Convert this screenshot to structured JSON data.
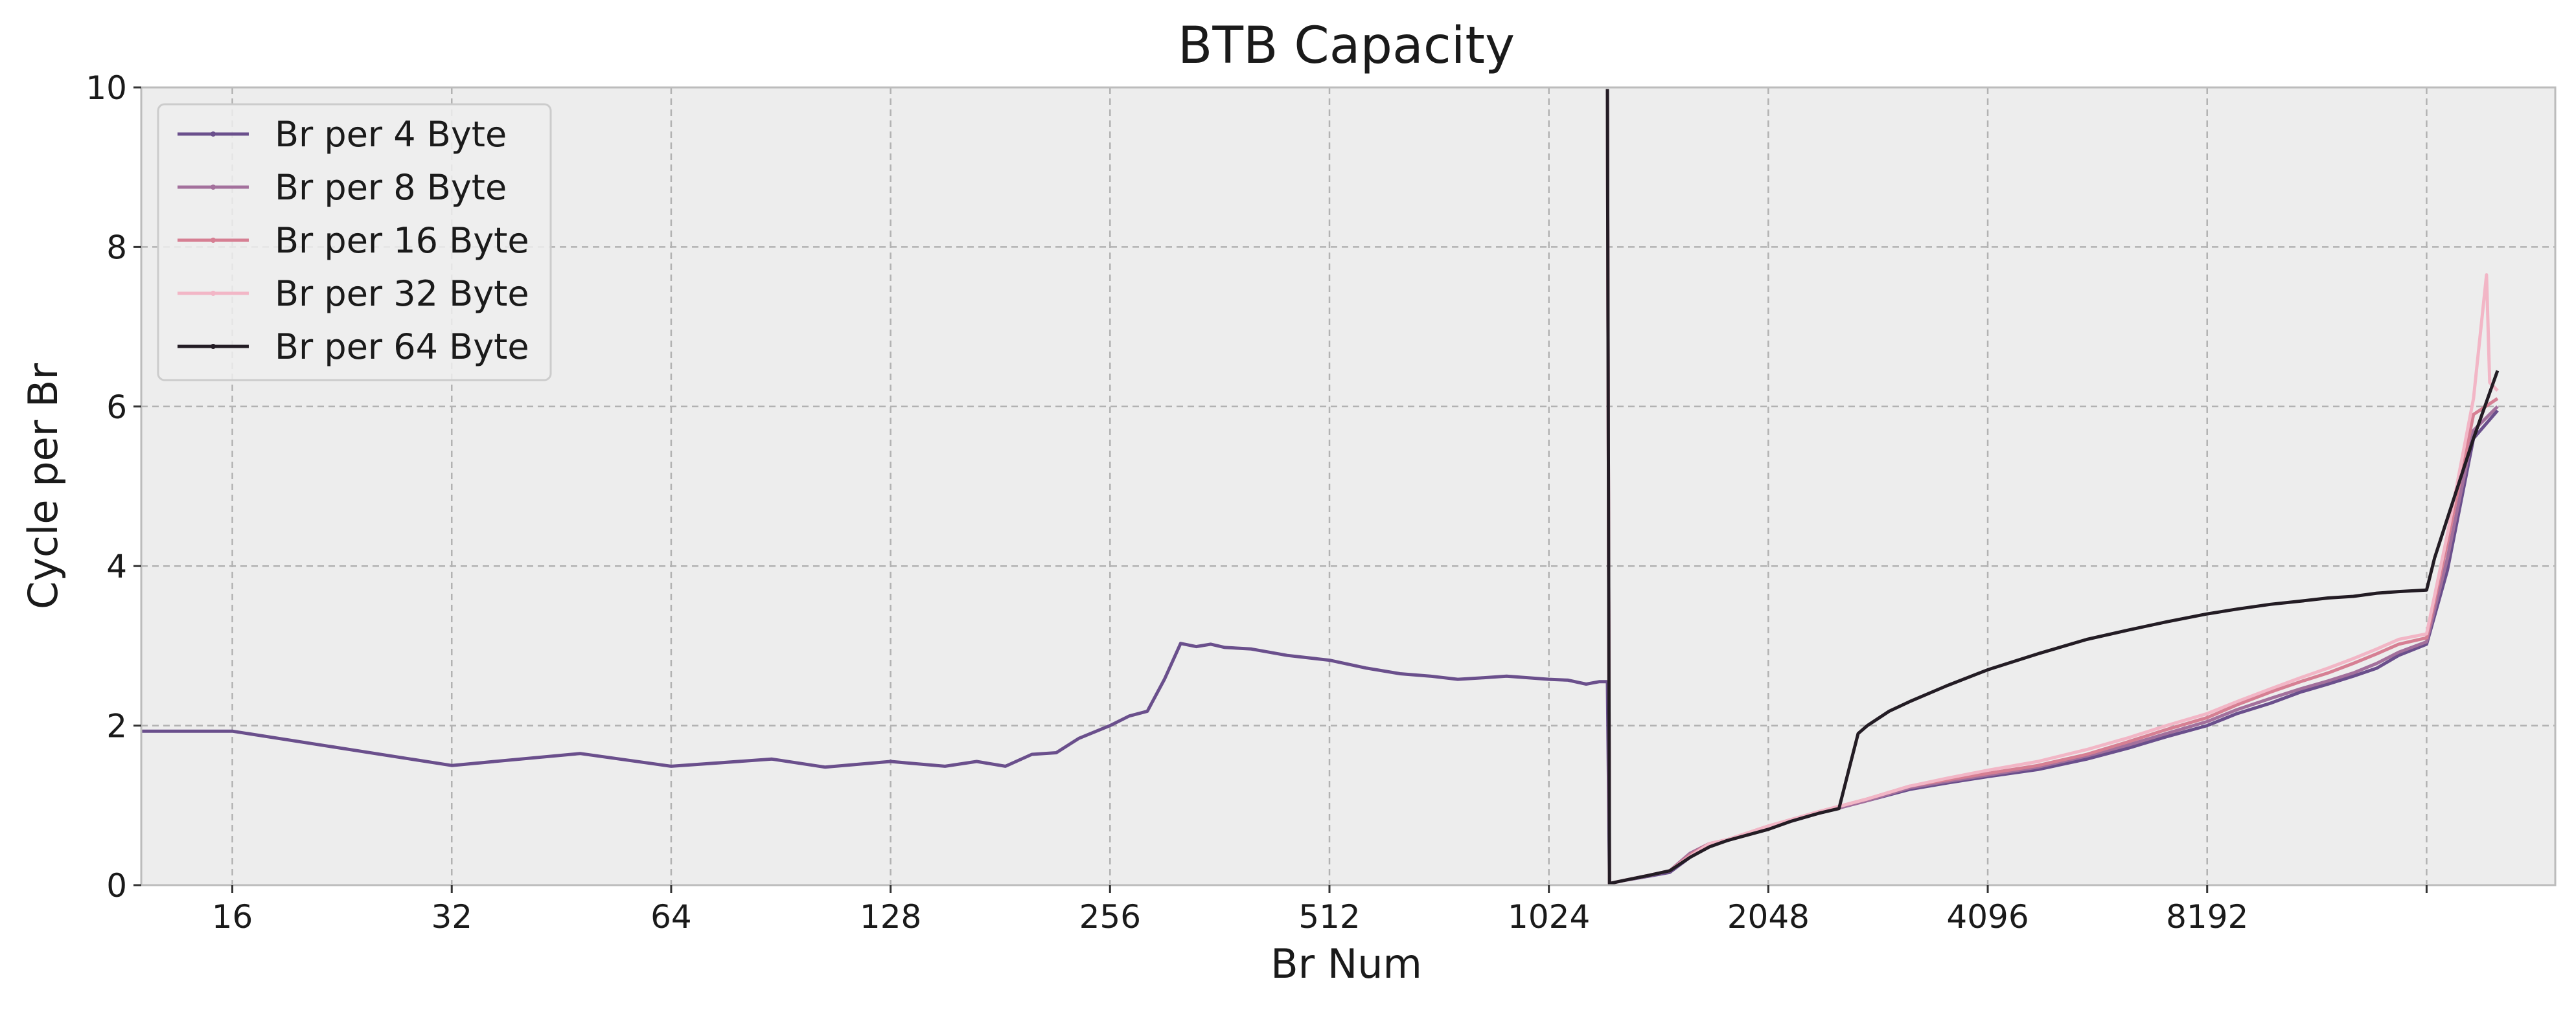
{
  "chart_data": {
    "type": "line",
    "title": "BTB Capacity",
    "xlabel": "Br Num",
    "ylabel": "Cycle per Br",
    "x_scale": "log2",
    "xlim": [
      12,
      24600
    ],
    "ylim": [
      0,
      10
    ],
    "x_ticks": [
      16,
      32,
      64,
      128,
      256,
      512,
      1024,
      2048,
      4096,
      8192,
      16384
    ],
    "x_tick_labels": [
      "16",
      "32",
      "64",
      "128",
      "256",
      "512",
      "1024",
      "2048",
      "4096",
      "8192",
      ""
    ],
    "y_ticks": [
      0,
      2,
      4,
      6,
      8,
      10
    ],
    "y_tick_labels": [
      "0",
      "2",
      "4",
      "6",
      "8",
      "10"
    ],
    "grid": true,
    "legend_position": "top-left",
    "series": [
      {
        "name": "Br per 4 Byte",
        "color": "#6a4f8c",
        "x": [
          12,
          16,
          32,
          48,
          64,
          88,
          104,
          128,
          152,
          168,
          184,
          200,
          216,
          232,
          256,
          272,
          288,
          304,
          320,
          336,
          352,
          368,
          400,
          448,
          512,
          576,
          640,
          704,
          768,
          832,
          896,
          960,
          1024,
          1088,
          1152,
          1200,
          1232,
          1240,
          1300,
          1400,
          1500,
          1600,
          1700,
          1800,
          2048,
          2400,
          2800,
          3200,
          3600,
          4096,
          4800,
          5600,
          6400,
          7200,
          8192,
          9000,
          10000,
          11000,
          12000,
          13000,
          14000,
          15000,
          16384,
          17500,
          19000,
          20500
        ],
        "y": [
          1.93,
          1.93,
          1.5,
          1.65,
          1.49,
          1.58,
          1.48,
          1.55,
          1.49,
          1.55,
          1.49,
          1.64,
          1.66,
          1.84,
          2.0,
          2.12,
          2.18,
          2.58,
          3.03,
          2.99,
          3.02,
          2.98,
          2.96,
          2.88,
          2.82,
          2.72,
          2.65,
          2.62,
          2.58,
          2.6,
          2.62,
          2.6,
          2.58,
          2.57,
          2.52,
          2.55,
          2.55,
          0.02,
          0.06,
          0.11,
          0.16,
          0.35,
          0.5,
          0.56,
          0.72,
          0.9,
          1.06,
          1.2,
          1.28,
          1.36,
          1.45,
          1.58,
          1.72,
          1.86,
          2.0,
          2.15,
          2.28,
          2.42,
          2.52,
          2.62,
          2.72,
          2.88,
          3.02,
          3.95,
          5.6,
          5.95
        ]
      },
      {
        "name": "Br per 8 Byte",
        "color": "#a3709c",
        "x": [
          1232,
          1240,
          1300,
          1400,
          1500,
          1600,
          1700,
          1800,
          2048,
          2400,
          2800,
          3200,
          3600,
          4096,
          4800,
          5600,
          6400,
          7200,
          8192,
          9000,
          10000,
          11000,
          12000,
          13000,
          14000,
          15000,
          16384,
          17500,
          19000,
          20500
        ],
        "y": [
          9.98,
          0.02,
          0.06,
          0.12,
          0.18,
          0.4,
          0.52,
          0.57,
          0.73,
          0.9,
          1.06,
          1.22,
          1.3,
          1.38,
          1.48,
          1.62,
          1.76,
          1.9,
          2.05,
          2.2,
          2.34,
          2.46,
          2.56,
          2.66,
          2.78,
          2.92,
          3.05,
          4.1,
          5.7,
          6.0
        ]
      },
      {
        "name": "Br per 16 Byte",
        "color": "#d67f93",
        "x": [
          1232,
          1240,
          1300,
          1400,
          1500,
          1600,
          1700,
          1800,
          2048,
          2400,
          2800,
          3200,
          3600,
          4096,
          4800,
          5600,
          6400,
          7200,
          8192,
          9000,
          10000,
          11000,
          12000,
          13000,
          14000,
          15000,
          16384,
          17500,
          19000,
          20500
        ],
        "y": [
          9.98,
          0.02,
          0.06,
          0.12,
          0.18,
          0.38,
          0.52,
          0.57,
          0.74,
          0.92,
          1.08,
          1.24,
          1.32,
          1.4,
          1.5,
          1.64,
          1.8,
          1.95,
          2.1,
          2.26,
          2.42,
          2.55,
          2.66,
          2.78,
          2.9,
          3.02,
          3.1,
          4.3,
          5.9,
          6.1
        ]
      },
      {
        "name": "Br per 32 Byte",
        "color": "#f2b6c6",
        "x": [
          1232,
          1240,
          1300,
          1400,
          1500,
          1600,
          1700,
          1800,
          2048,
          2400,
          2800,
          3200,
          3600,
          4096,
          4800,
          5600,
          6400,
          7200,
          8192,
          9000,
          10000,
          11000,
          12000,
          13000,
          14000,
          15000,
          16384,
          17500,
          19000,
          19800,
          20000,
          20500
        ],
        "y": [
          9.98,
          0.02,
          0.06,
          0.12,
          0.18,
          0.36,
          0.52,
          0.57,
          0.74,
          0.92,
          1.08,
          1.24,
          1.34,
          1.44,
          1.55,
          1.7,
          1.85,
          2.0,
          2.15,
          2.3,
          2.46,
          2.6,
          2.72,
          2.84,
          2.96,
          3.08,
          3.15,
          4.4,
          6.1,
          7.65,
          6.3,
          6.2
        ]
      },
      {
        "name": "Br per 64 Byte",
        "color": "#231c24",
        "x": [
          1232,
          1240,
          1300,
          1400,
          1500,
          1600,
          1700,
          1800,
          2048,
          2200,
          2400,
          2560,
          2650,
          2720,
          2800,
          3000,
          3200,
          3600,
          4096,
          4800,
          5600,
          6400,
          7200,
          8192,
          9000,
          10000,
          11000,
          12000,
          13000,
          14000,
          15000,
          16384,
          16800,
          17500,
          19000,
          20500
        ],
        "y": [
          9.98,
          0.02,
          0.06,
          0.12,
          0.18,
          0.35,
          0.48,
          0.56,
          0.7,
          0.8,
          0.9,
          0.96,
          1.5,
          1.9,
          2.0,
          2.18,
          2.3,
          2.5,
          2.7,
          2.9,
          3.08,
          3.2,
          3.3,
          3.4,
          3.46,
          3.52,
          3.56,
          3.6,
          3.62,
          3.66,
          3.68,
          3.7,
          4.1,
          4.6,
          5.6,
          6.45
        ]
      }
    ]
  }
}
